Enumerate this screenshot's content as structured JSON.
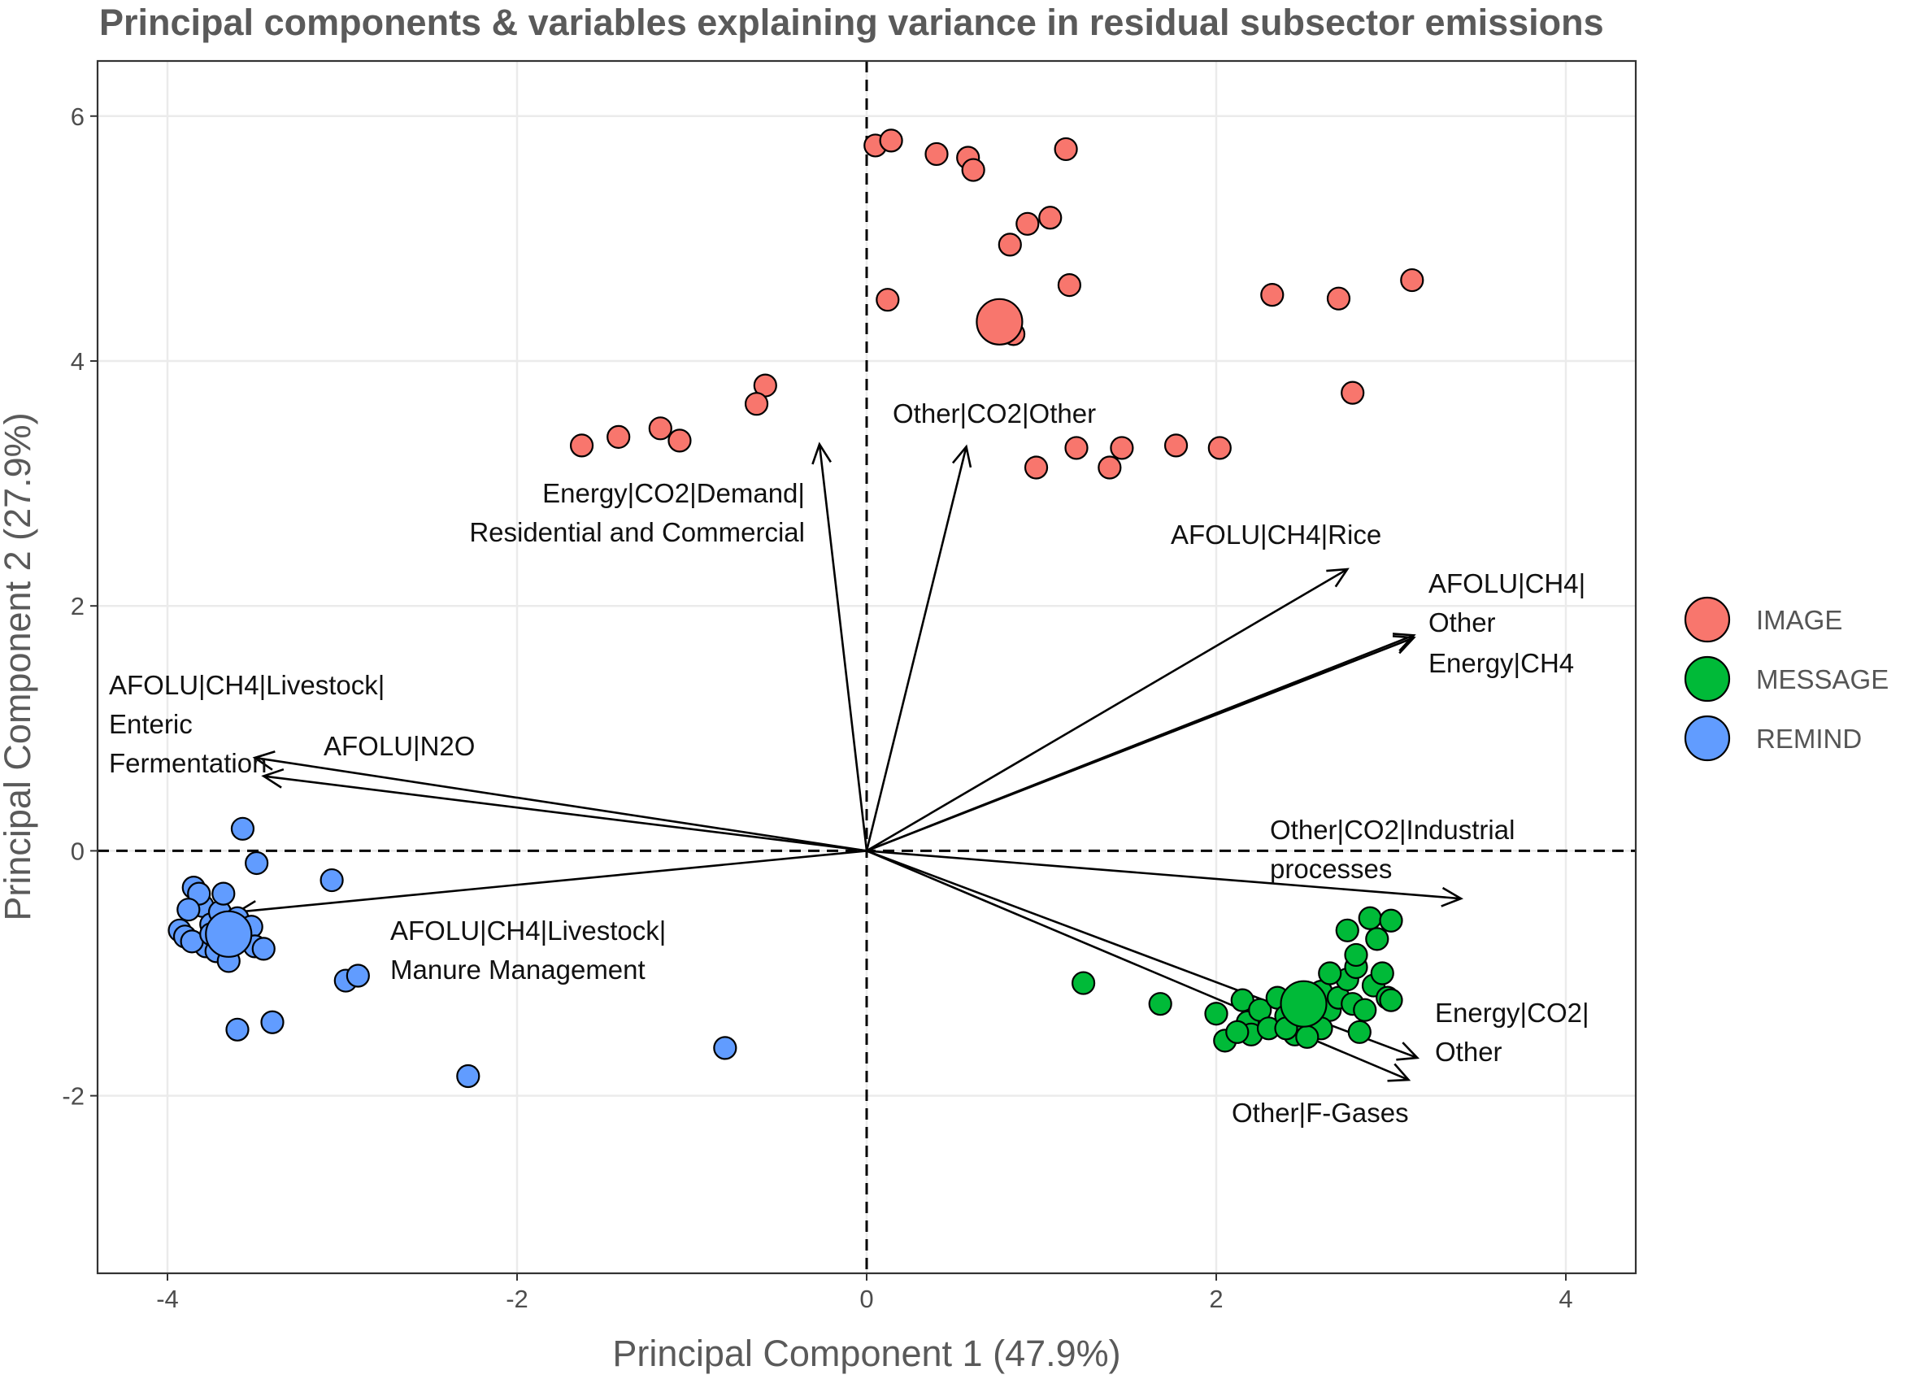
{
  "chart_data": {
    "type": "scatter",
    "title": "Principal components & variables explaining variance in residual subsector emissions",
    "xlabel": "Principal Component 1 (47.9%)",
    "ylabel": "Principal Component 2 (27.9%)",
    "xlim": [
      -4.4,
      4.4
    ],
    "ylim": [
      -3.45,
      6.45
    ],
    "xticks": [
      -4,
      -2,
      0,
      2,
      4
    ],
    "yticks": [
      -2,
      0,
      2,
      4,
      6
    ],
    "grid": true,
    "reference_lines": {
      "x": 0,
      "y": 0,
      "style": "dashed"
    },
    "legend_position": "right",
    "series": [
      {
        "name": "IMAGE",
        "color": "#F8766D",
        "centroid": [
          0.76,
          4.32
        ],
        "points": [
          [
            0.05,
            5.76
          ],
          [
            0.14,
            5.8
          ],
          [
            0.4,
            5.69
          ],
          [
            0.58,
            5.66
          ],
          [
            0.61,
            5.56
          ],
          [
            1.14,
            5.73
          ],
          [
            0.82,
            4.95
          ],
          [
            0.92,
            5.12
          ],
          [
            1.05,
            5.17
          ],
          [
            0.12,
            4.5
          ],
          [
            1.16,
            4.62
          ],
          [
            0.84,
            4.22
          ],
          [
            2.32,
            4.54
          ],
          [
            2.7,
            4.51
          ],
          [
            3.12,
            4.66
          ],
          [
            2.78,
            3.74
          ],
          [
            -0.58,
            3.8
          ],
          [
            -0.63,
            3.65
          ],
          [
            -1.63,
            3.31
          ],
          [
            -1.42,
            3.38
          ],
          [
            -1.18,
            3.45
          ],
          [
            -1.07,
            3.35
          ],
          [
            1.2,
            3.29
          ],
          [
            1.46,
            3.29
          ],
          [
            1.77,
            3.31
          ],
          [
            2.02,
            3.29
          ],
          [
            0.97,
            3.13
          ],
          [
            1.39,
            3.13
          ]
        ]
      },
      {
        "name": "MESSAGE",
        "color": "#00BA38",
        "centroid": [
          2.5,
          -1.25
        ],
        "points": [
          [
            1.24,
            -1.08
          ],
          [
            1.68,
            -1.25
          ],
          [
            2.0,
            -1.33
          ],
          [
            2.05,
            -1.55
          ],
          [
            2.15,
            -1.22
          ],
          [
            2.18,
            -1.4
          ],
          [
            2.2,
            -1.5
          ],
          [
            2.25,
            -1.3
          ],
          [
            2.3,
            -1.45
          ],
          [
            2.35,
            -1.2
          ],
          [
            2.4,
            -1.35
          ],
          [
            2.45,
            -1.5
          ],
          [
            2.5,
            -1.28
          ],
          [
            2.55,
            -1.4
          ],
          [
            2.6,
            -1.15
          ],
          [
            2.65,
            -1.3
          ],
          [
            2.7,
            -1.2
          ],
          [
            2.75,
            -1.05
          ],
          [
            2.78,
            -1.25
          ],
          [
            2.8,
            -0.95
          ],
          [
            2.85,
            -1.3
          ],
          [
            2.9,
            -1.1
          ],
          [
            2.95,
            -1.0
          ],
          [
            2.75,
            -0.65
          ],
          [
            2.8,
            -0.85
          ],
          [
            2.88,
            -0.55
          ],
          [
            2.92,
            -0.72
          ],
          [
            3.0,
            -0.57
          ],
          [
            2.98,
            -1.2
          ],
          [
            3.0,
            -1.22
          ],
          [
            2.6,
            -1.45
          ],
          [
            2.4,
            -1.45
          ],
          [
            2.12,
            -1.48
          ],
          [
            2.52,
            -1.52
          ],
          [
            2.82,
            -1.48
          ],
          [
            2.65,
            -1.0
          ]
        ]
      },
      {
        "name": "REMIND",
        "color": "#619CFF",
        "centroid": [
          -3.65,
          -0.68
        ],
        "points": [
          [
            -3.57,
            0.18
          ],
          [
            -3.49,
            -0.1
          ],
          [
            -3.06,
            -0.24
          ],
          [
            -3.93,
            -0.65
          ],
          [
            -3.9,
            -0.7
          ],
          [
            -3.85,
            -0.3
          ],
          [
            -3.8,
            -0.45
          ],
          [
            -3.78,
            -0.78
          ],
          [
            -3.75,
            -0.6
          ],
          [
            -3.72,
            -0.82
          ],
          [
            -3.7,
            -0.5
          ],
          [
            -3.68,
            -0.35
          ],
          [
            -3.65,
            -0.9
          ],
          [
            -3.6,
            -0.55
          ],
          [
            -3.58,
            -0.72
          ],
          [
            -3.55,
            -0.65
          ],
          [
            -3.52,
            -0.62
          ],
          [
            -3.5,
            -0.78
          ],
          [
            -3.45,
            -0.8
          ],
          [
            -3.82,
            -0.35
          ],
          [
            -3.88,
            -0.48
          ],
          [
            -3.86,
            -0.74
          ],
          [
            -3.75,
            -0.68
          ],
          [
            -2.98,
            -1.06
          ],
          [
            -2.91,
            -1.02
          ],
          [
            -3.6,
            -1.46
          ],
          [
            -3.4,
            -1.4
          ],
          [
            -2.28,
            -1.84
          ],
          [
            -0.81,
            -1.61
          ]
        ]
      }
    ],
    "vectors": [
      {
        "label": [
          "AFOLU|CH4|Livestock|",
          "Enteric",
          "Fermentation"
        ],
        "end": [
          -3.5,
          0.76
        ]
      },
      {
        "label": [
          "AFOLU|N2O"
        ],
        "end": [
          -3.45,
          0.61
        ]
      },
      {
        "label": [
          "AFOLU|CH4|Livestock|",
          "Manure Management"
        ],
        "end": [
          -3.6,
          -0.5
        ]
      },
      {
        "label": [
          "Energy|CO2|Demand|",
          "Residential and Commercial"
        ],
        "end": [
          -0.27,
          3.32
        ]
      },
      {
        "label": [
          "Other|CO2|Other"
        ],
        "end": [
          0.57,
          3.3
        ]
      },
      {
        "label": [
          "AFOLU|CH4|Rice"
        ],
        "end": [
          2.75,
          2.3
        ]
      },
      {
        "label": [
          "AFOLU|CH4|",
          "Other"
        ],
        "end": [
          3.13,
          1.74
        ]
      },
      {
        "label": [
          "Energy|CH4"
        ],
        "end": [
          3.13,
          1.76
        ]
      },
      {
        "label": [
          "Other|CO2|Industrial",
          "processes"
        ],
        "end": [
          3.4,
          -0.39
        ]
      },
      {
        "label": [
          "Energy|CO2|",
          "Other"
        ],
        "end": [
          3.15,
          -1.69
        ]
      },
      {
        "label": [
          "Other|F-Gases"
        ],
        "end": [
          3.1,
          -1.87
        ]
      }
    ]
  },
  "legend": [
    {
      "label": "IMAGE",
      "color": "#F8766D"
    },
    {
      "label": "MESSAGE",
      "color": "#00BA38"
    },
    {
      "label": "REMIND",
      "color": "#619CFF"
    }
  ]
}
